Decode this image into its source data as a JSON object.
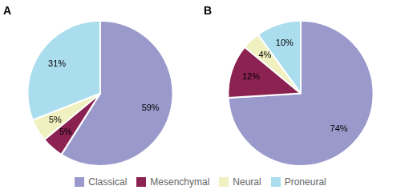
{
  "chart_data": [
    {
      "type": "pie",
      "title": "A",
      "categories": [
        "Classical",
        "Mesenchymal",
        "Neural",
        "Proneural"
      ],
      "values": [
        59,
        5,
        5,
        31
      ],
      "value_labels": [
        "59%",
        "5%",
        "5%",
        "31%"
      ],
      "colors": [
        "#9999cc",
        "#8b2252",
        "#f0f0c0",
        "#aaddee"
      ],
      "data_labels": true,
      "legend": "bottom"
    },
    {
      "type": "pie",
      "title": "B",
      "categories": [
        "Classical",
        "Mesenchymal",
        "Neural",
        "Proneural"
      ],
      "values": [
        74,
        12,
        4,
        10
      ],
      "value_labels": [
        "74%",
        "12%",
        "4%",
        "10%"
      ],
      "colors": [
        "#9999cc",
        "#8b2252",
        "#f0f0c0",
        "#aaddee"
      ],
      "data_labels": true,
      "legend": "bottom"
    }
  ]
}
